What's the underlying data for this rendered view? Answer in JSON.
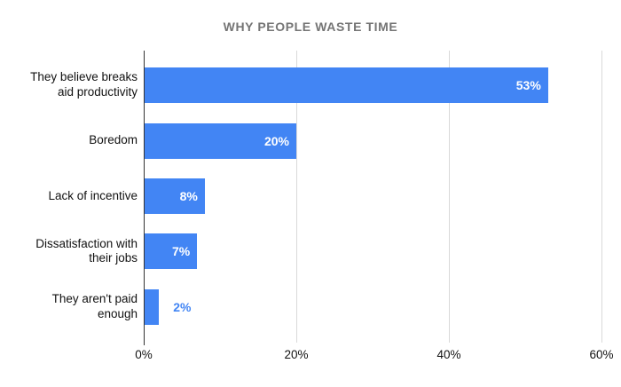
{
  "title": "WHY PEOPLE WASTE TIME",
  "colors": {
    "bar": "#4285f4",
    "title": "#757575",
    "gridline": "#d9d9d9",
    "axis": "#333333",
    "label": "#111111",
    "value_inside": "#ffffff"
  },
  "chart_data": {
    "type": "bar",
    "orientation": "horizontal",
    "title": "WHY PEOPLE WASTE TIME",
    "categories": [
      "They believe breaks\naid productivity",
      "Boredom",
      "Lack of incentive",
      "Dissatisfaction with\ntheir jobs",
      "They aren't paid\nenough"
    ],
    "values": [
      53,
      20,
      8,
      7,
      2
    ],
    "value_labels": [
      "53%",
      "20%",
      "8%",
      "7%",
      "2%"
    ],
    "xlabel": "",
    "ylabel": "",
    "xlim": [
      0,
      60
    ],
    "x_ticks": [
      "0%",
      "20%",
      "40%",
      "60%"
    ],
    "x_tick_values": [
      0,
      20,
      40,
      60
    ],
    "grid": true,
    "legend": false
  }
}
